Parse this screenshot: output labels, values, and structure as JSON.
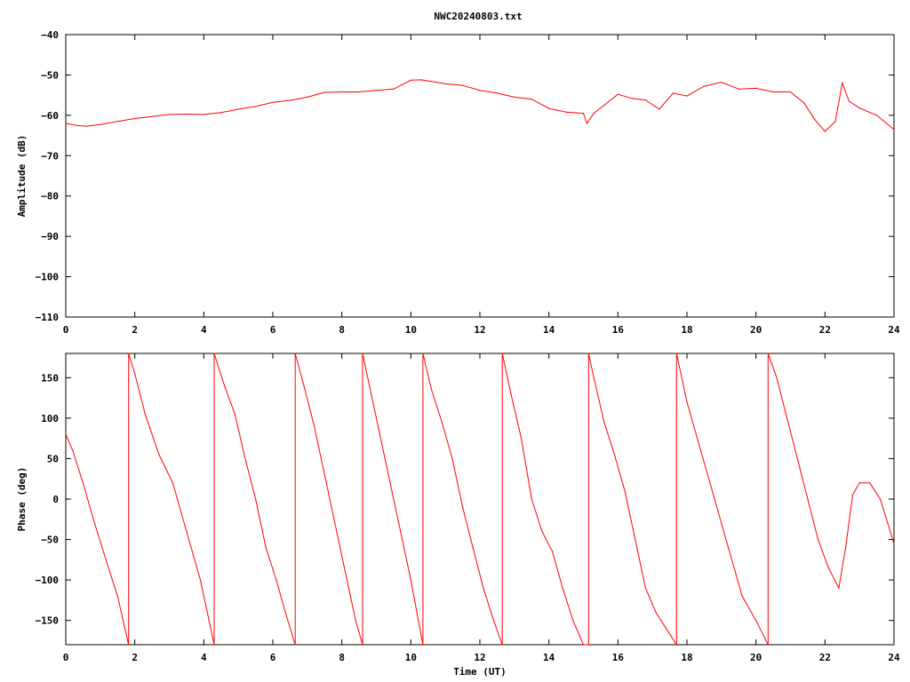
{
  "title": "NWC20240803.txt",
  "colors": {
    "trace": "#ff0000",
    "axes": "#000000",
    "background": "#ffffff"
  },
  "chart_data": [
    {
      "type": "line",
      "title": "NWC20240803.txt",
      "xlabel": "",
      "ylabel": "Amplitude (dB)",
      "xlim": [
        0,
        24
      ],
      "ylim": [
        -110,
        -40
      ],
      "xticks": [
        "0",
        "2",
        "4",
        "6",
        "8",
        "10",
        "12",
        "14",
        "16",
        "18",
        "20",
        "22",
        "24"
      ],
      "yticks": [
        "-110",
        "-100",
        "-90",
        "-80",
        "-70",
        "-60",
        "-50",
        "-40"
      ],
      "grid": false,
      "series": [
        {
          "x": [
            0,
            0.3,
            0.6,
            1,
            1.5,
            2,
            2.5,
            3,
            3.5,
            4,
            4.5,
            5,
            5.5,
            6,
            6.5,
            7,
            7.5,
            8,
            8.5,
            9,
            9.5,
            10,
            10.3,
            11,
            11.5,
            12,
            12.5,
            13,
            13.5,
            14,
            14.5,
            15,
            15.1,
            15.3,
            15.6,
            16,
            16.4,
            16.8,
            17.2,
            17.6,
            18,
            18.5,
            19,
            19.5,
            20,
            20.5,
            21,
            21.4,
            21.7,
            22,
            22.3,
            22.5,
            22.7,
            23,
            23.5,
            24
          ],
          "y": [
            -62,
            -62.5,
            -62.7,
            -62.3,
            -61.5,
            -60.8,
            -60.3,
            -59.8,
            -59.7,
            -59.8,
            -59.3,
            -58.5,
            -57.8,
            -56.8,
            -56.3,
            -55.5,
            -54.3,
            -54.2,
            -54.2,
            -53.8,
            -53.5,
            -51.3,
            -51.2,
            -52.2,
            -52.6,
            -53.8,
            -54.5,
            -55.5,
            -56,
            -58.3,
            -59.2,
            -59.5,
            -62,
            -59.5,
            -57.5,
            -54.8,
            -55.8,
            -56.2,
            -58.5,
            -54.5,
            -55.2,
            -52.8,
            -51.8,
            -53.5,
            -53.3,
            -54.2,
            -54.2,
            -57,
            -61,
            -64,
            -61.5,
            -52,
            -56.5,
            -58.2,
            -60,
            -63.5
          ]
        }
      ]
    },
    {
      "type": "line",
      "title": "",
      "xlabel": "Time (UT)",
      "ylabel": "Phase (deg)",
      "xlim": [
        0,
        24
      ],
      "ylim": [
        -180,
        180
      ],
      "xticks": [
        "0",
        "2",
        "4",
        "6",
        "8",
        "10",
        "12",
        "14",
        "16",
        "18",
        "20",
        "22",
        "24"
      ],
      "yticks": [
        "-150",
        "-100",
        "-50",
        "0",
        "50",
        "100",
        "150"
      ],
      "grid": false,
      "series": [
        {
          "x": [
            0,
            0.2,
            0.5,
            0.8,
            1.2,
            1.5,
            1.82,
            1.82,
            2,
            2.3,
            2.7,
            3.1,
            3.5,
            3.9,
            4.3,
            4.3,
            4.6,
            4.9,
            5.2,
            5.5,
            5.8,
            6.1,
            6.4,
            6.65,
            6.65,
            6.9,
            7.2,
            7.5,
            7.8,
            8.1,
            8.4,
            8.6,
            8.6,
            8.8,
            9.1,
            9.4,
            9.7,
            10,
            10.35,
            10.35,
            10.6,
            10.9,
            11.2,
            11.5,
            11.8,
            12.1,
            12.4,
            12.65,
            12.65,
            12.9,
            13.2,
            13.5,
            13.8,
            14.1,
            14.4,
            14.7,
            15,
            15.15,
            15.15,
            15.3,
            15.6,
            15.9,
            16.2,
            16.5,
            16.8,
            17.1,
            17.4,
            17.7,
            17.7,
            18,
            18.4,
            18.8,
            19.2,
            19.6,
            20,
            20.35,
            20.35,
            20.6,
            20.9,
            21.2,
            21.5,
            21.8,
            22.1,
            22.4,
            22.6,
            22.8,
            23,
            23.3,
            23.6,
            24
          ],
          "y": [
            80,
            60,
            20,
            -25,
            -80,
            -120,
            -180,
            180,
            155,
            105,
            55,
            20,
            -40,
            -100,
            -180,
            180,
            140,
            105,
            50,
            0,
            -60,
            -100,
            -145,
            -180,
            180,
            140,
            90,
            30,
            -30,
            -90,
            -150,
            -180,
            180,
            140,
            80,
            20,
            -40,
            -100,
            -180,
            180,
            135,
            95,
            50,
            -10,
            -60,
            -110,
            -150,
            -180,
            180,
            130,
            75,
            0,
            -40,
            -65,
            -110,
            -150,
            -180,
            -180,
            180,
            150,
            95,
            55,
            10,
            -50,
            -110,
            -140,
            -160,
            -180,
            180,
            120,
            60,
            0,
            -60,
            -120,
            -150,
            -180,
            180,
            150,
            100,
            50,
            0,
            -50,
            -85,
            -110,
            -60,
            5,
            20,
            20,
            0,
            -55
          ]
        }
      ]
    }
  ]
}
